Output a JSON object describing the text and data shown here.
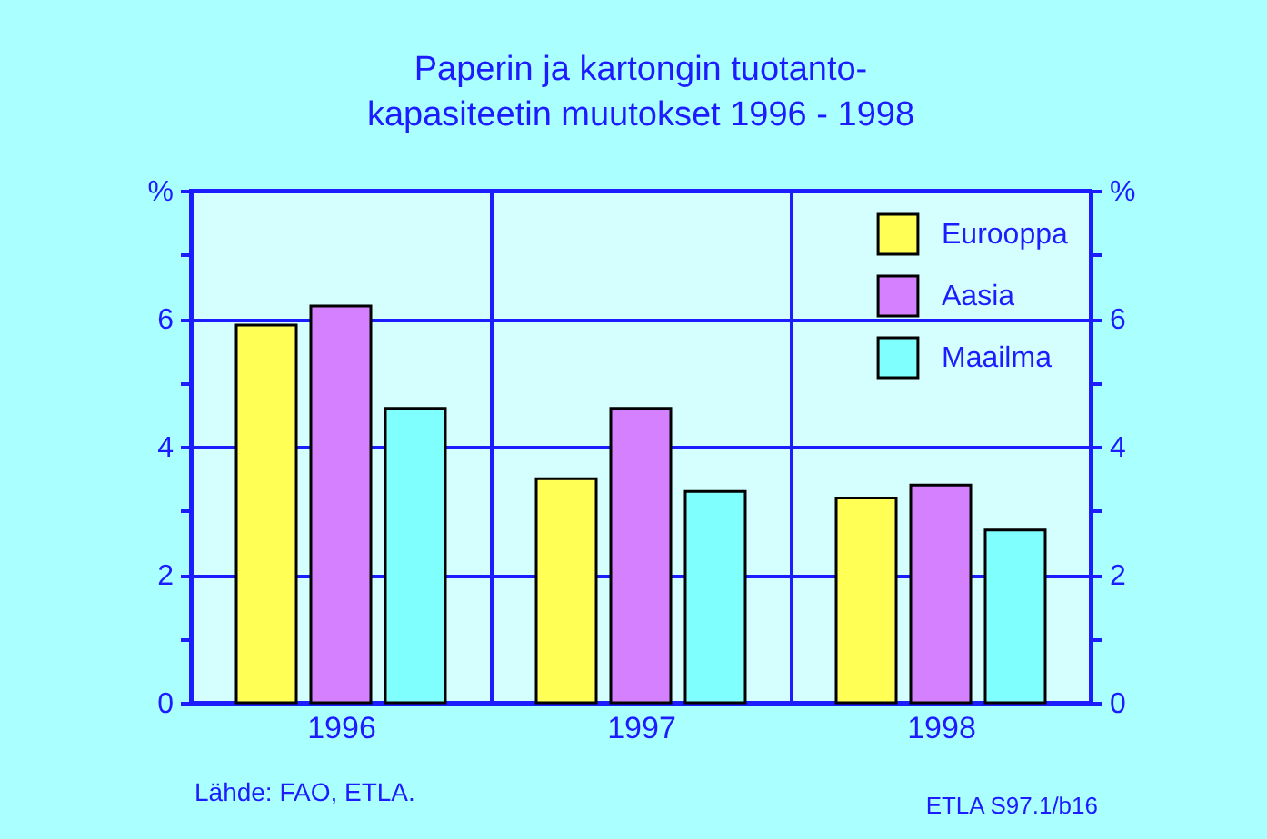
{
  "chart_data": {
    "type": "bar",
    "title": "Paperin ja kartongin tuotanto-\nkapasiteetin muutokset 1996 - 1998",
    "categories": [
      "1996",
      "1997",
      "1998"
    ],
    "series": [
      {
        "name": "Eurooppa",
        "color": "#ffff55",
        "values": [
          5.9,
          3.5,
          3.2
        ]
      },
      {
        "name": "Aasia",
        "color": "#d580ff",
        "values": [
          6.2,
          4.6,
          3.4
        ]
      },
      {
        "name": "Maailma",
        "color": "#80ffff",
        "values": [
          4.6,
          3.3,
          2.7
        ]
      }
    ],
    "ylim": [
      0,
      8
    ],
    "yticks": [
      0,
      {
        "value": 1,
        "label": null
      },
      2,
      {
        "value": 3,
        "label": null
      },
      4,
      {
        "value": 5,
        "label": null
      },
      6,
      {
        "value": 7,
        "label": null
      },
      {
        "value": 8,
        "label": "%"
      }
    ],
    "y2lim": [
      0,
      8
    ],
    "y2ticks": [
      0,
      {
        "value": 1,
        "label": null
      },
      2,
      {
        "value": 3,
        "label": null
      },
      4,
      {
        "value": 5,
        "label": null
      },
      6,
      {
        "value": 7,
        "label": null
      },
      {
        "value": 8,
        "label": "%"
      }
    ],
    "grid": true,
    "legend": "top right",
    "annotations": [
      "Lähde: FAO, ETLA.",
      "ETLA S97.1/b16"
    ]
  }
}
